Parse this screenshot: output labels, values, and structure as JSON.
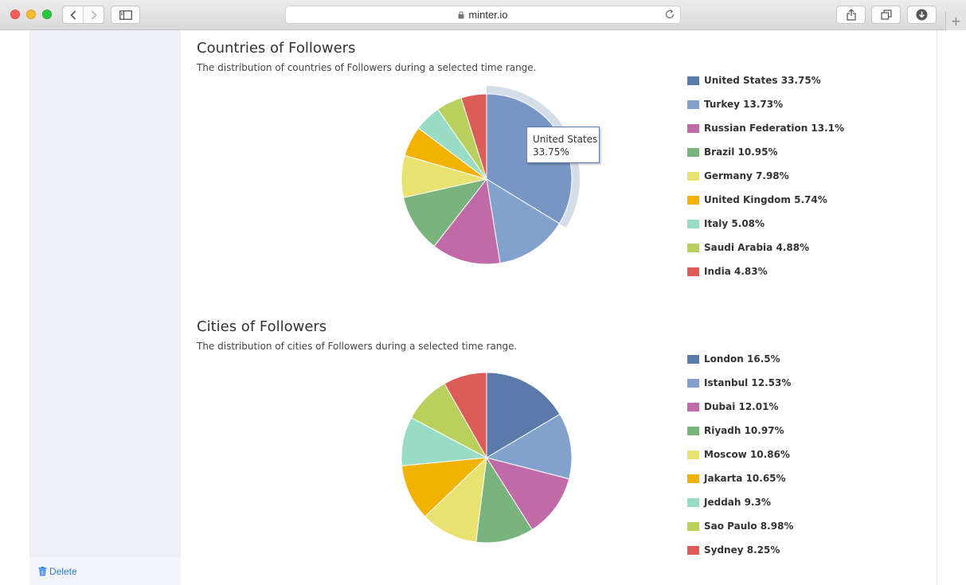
{
  "browser": {
    "url": "minter.io"
  },
  "sidebar": {
    "delete_label": "Delete"
  },
  "countries": {
    "title": "Countries of Followers",
    "subtitle": "The distribution of countries of Followers during a selected time range.",
    "tooltip": {
      "label": "United States",
      "value": "33.75%"
    }
  },
  "cities": {
    "title": "Cities of Followers",
    "subtitle": "The distribution of cities of Followers during a selected time range."
  },
  "chart_data": [
    {
      "type": "pie",
      "title": "Countries of Followers",
      "categories": [
        "United States",
        "Turkey",
        "Russian Federation",
        "Brazil",
        "Germany",
        "United Kingdom",
        "Italy",
        "Saudi Arabia",
        "India"
      ],
      "values": [
        33.75,
        13.73,
        13.1,
        10.95,
        7.98,
        5.74,
        5.08,
        4.88,
        4.83
      ],
      "legend": [
        "United States 33.75%",
        "Turkey 13.73%",
        "Russian Federation 13.1%",
        "Brazil 10.95%",
        "Germany 7.98%",
        "United Kingdom 5.74%",
        "Italy 5.08%",
        "Saudi Arabia 4.88%",
        "India 4.83%"
      ],
      "colors": [
        "#7896c3",
        "#82a2cd",
        "#c06ba8",
        "#78b47c",
        "#e8e270",
        "#f2b200",
        "#99dcc5",
        "#b9d15c",
        "#dc5c57"
      ],
      "legend_colors": [
        "#5a7aa9",
        "#82a2cd",
        "#c06ba8",
        "#78b47c",
        "#e8e270",
        "#f2b200",
        "#99dcc5",
        "#b9d15c",
        "#dc5c57"
      ],
      "highlighted": "United States",
      "legend_position": "right"
    },
    {
      "type": "pie",
      "title": "Cities of Followers",
      "categories": [
        "London",
        "Istanbul",
        "Dubai",
        "Riyadh",
        "Moscow",
        "Jakarta",
        "Jeddah",
        "Sao Paulo",
        "Sydney"
      ],
      "values": [
        16.5,
        12.53,
        12.01,
        10.97,
        10.86,
        10.65,
        9.3,
        8.98,
        8.25
      ],
      "legend": [
        "London 16.5%",
        "Istanbul 12.53%",
        "Dubai 12.01%",
        "Riyadh 10.97%",
        "Moscow 10.86%",
        "Jakarta 10.65%",
        "Jeddah 9.3%",
        "Sao Paulo 8.98%",
        "Sydney 8.25%"
      ],
      "colors": [
        "#5a7aa9",
        "#82a2cd",
        "#c06ba8",
        "#78b47c",
        "#e8e270",
        "#f2b200",
        "#99dcc5",
        "#b9d15c",
        "#dc5c57"
      ],
      "legend_colors": [
        "#5a7aa9",
        "#82a2cd",
        "#c06ba8",
        "#78b47c",
        "#e8e270",
        "#f2b200",
        "#99dcc5",
        "#b9d15c",
        "#dc5c57"
      ],
      "legend_position": "right"
    }
  ]
}
